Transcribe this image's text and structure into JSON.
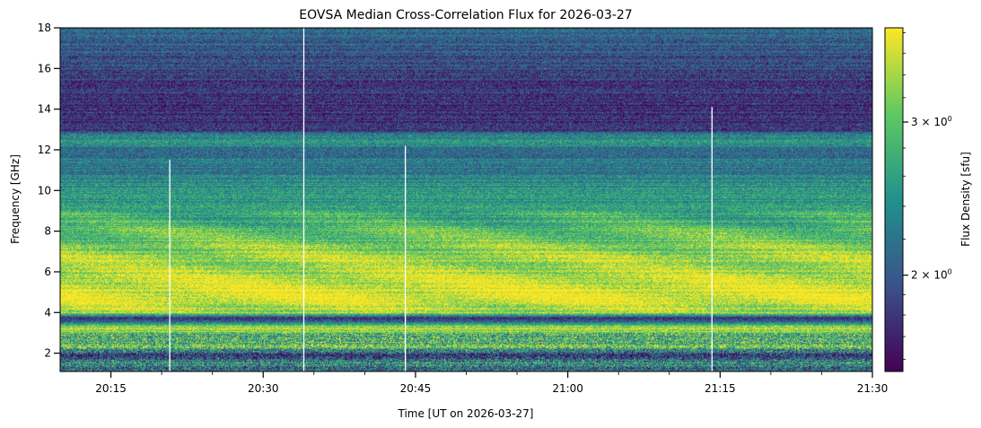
{
  "chart_data": {
    "type": "heatmap",
    "title": "EOVSA Median Cross-Correlation Flux for 2026-03-27",
    "xlabel": "Time [UT on 2026-03-27]",
    "ylabel": "Frequency [GHz]",
    "colorbar_label": "Flux Density [sfu]",
    "colormap": "viridis",
    "colormap_stops": [
      "#440154",
      "#3b528b",
      "#21918c",
      "#5ec962",
      "#fde725"
    ],
    "x_range_minutes": [
      0,
      80
    ],
    "x_ticks": [
      {
        "value": 5,
        "label": "20:15"
      },
      {
        "value": 20,
        "label": "20:30"
      },
      {
        "value": 35,
        "label": "20:45"
      },
      {
        "value": 50,
        "label": "21:00"
      },
      {
        "value": 65,
        "label": "21:15"
      },
      {
        "value": 80,
        "label": "21:30"
      }
    ],
    "x_minor_ticks": [
      10,
      15,
      25,
      30,
      40,
      45,
      55,
      60,
      70,
      75
    ],
    "ylim": [
      1.1,
      18.0
    ],
    "y_ticks": [
      {
        "value": 2,
        "label": "2"
      },
      {
        "value": 4,
        "label": "4"
      },
      {
        "value": 6,
        "label": "6"
      },
      {
        "value": 8,
        "label": "8"
      },
      {
        "value": 10,
        "label": "10"
      },
      {
        "value": 12,
        "label": "12"
      },
      {
        "value": 14,
        "label": "14"
      },
      {
        "value": 16,
        "label": "16"
      },
      {
        "value": 18,
        "label": "18"
      }
    ],
    "colorbar_scale": "log",
    "colorbar_range": [
      1.55,
      3.85
    ],
    "colorbar_ticks": [
      {
        "value": 2,
        "base": "2 × 10",
        "exp": "0"
      },
      {
        "value": 3,
        "base": "3 × 10",
        "exp": "0"
      }
    ],
    "colorbar_minor_ticks": [
      1.6,
      1.7,
      1.8,
      1.9,
      2.2,
      2.4,
      2.6,
      2.8,
      3.2,
      3.4,
      3.6,
      3.8
    ],
    "frequency_profile": [
      {
        "f": 1.1,
        "v": 0.35
      },
      {
        "f": 1.5,
        "v": 0.5
      },
      {
        "f": 1.9,
        "v": 0.2
      },
      {
        "f": 2.3,
        "v": 0.75
      },
      {
        "f": 2.8,
        "v": 0.55
      },
      {
        "f": 3.2,
        "v": 0.95
      },
      {
        "f": 3.7,
        "v": 0.05
      },
      {
        "f": 4.0,
        "v": 0.9
      },
      {
        "f": 5.0,
        "v": 0.98
      },
      {
        "f": 6.0,
        "v": 0.9
      },
      {
        "f": 7.0,
        "v": 0.82
      },
      {
        "f": 8.0,
        "v": 0.68
      },
      {
        "f": 9.0,
        "v": 0.58
      },
      {
        "f": 10.0,
        "v": 0.52
      },
      {
        "f": 11.0,
        "v": 0.42
      },
      {
        "f": 12.0,
        "v": 0.35
      },
      {
        "f": 12.5,
        "v": 0.55
      },
      {
        "f": 13.0,
        "v": 0.18
      },
      {
        "f": 14.0,
        "v": 0.12
      },
      {
        "f": 15.0,
        "v": 0.18
      },
      {
        "f": 16.0,
        "v": 0.22
      },
      {
        "f": 17.0,
        "v": 0.28
      },
      {
        "f": 18.0,
        "v": 0.32
      }
    ],
    "gap_lines": [
      {
        "t": 10.8,
        "f_max": 11.5
      },
      {
        "t": 24.0,
        "f_max": 18.0
      },
      {
        "t": 34.0,
        "f_max": 12.2
      },
      {
        "t": 64.2,
        "f_max": 14.1
      }
    ]
  }
}
